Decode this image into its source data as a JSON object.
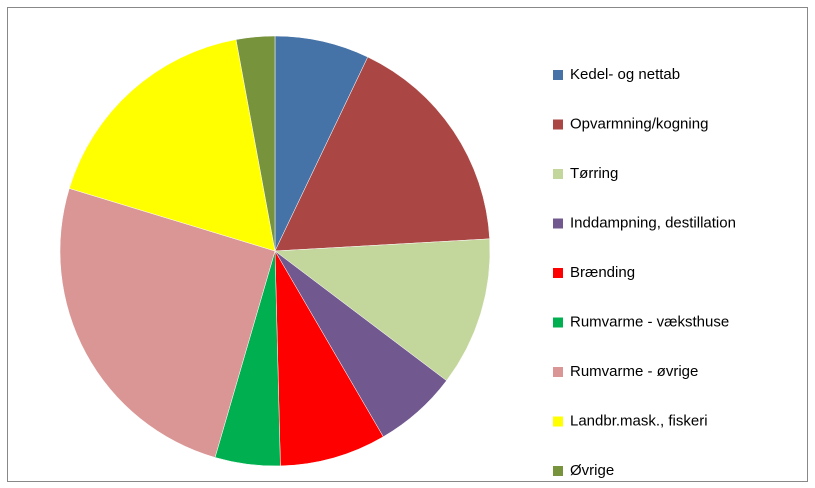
{
  "chart_data": {
    "type": "pie",
    "categories": [
      "Kedel- og nettab",
      "Opvarmning/kogning",
      "Tørring",
      "Inddampning, destillation",
      "Brænding",
      "Rumvarme - væksthuse",
      "Rumvarme - øvrige",
      "Landbr.mask., fiskeri",
      "Øvrige"
    ],
    "values": [
      7.1,
      17,
      11.2,
      6.3,
      8,
      4.9,
      25.2,
      17.4,
      2.9
    ],
    "colors": [
      "#4572a7",
      "#aa4643",
      "#c3d69b",
      "#71588f",
      "#ff0000",
      "#00b050",
      "#d99694",
      "#ffff00",
      "#77933c"
    ],
    "legend": "right"
  }
}
